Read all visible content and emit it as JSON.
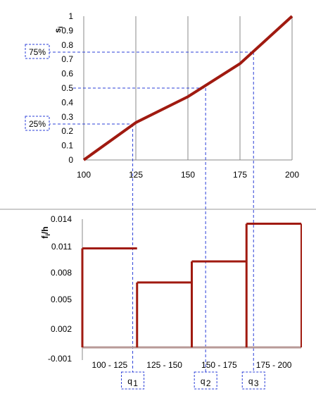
{
  "chart_data": [
    {
      "type": "line",
      "xlabel": "",
      "ylabel": "s",
      "ylabel_sub": "i",
      "xlim": [
        100,
        200
      ],
      "ylim": [
        0,
        1
      ],
      "x_ticks": [
        "100",
        "125",
        "150",
        "175",
        "200"
      ],
      "y_ticks": [
        "0",
        "0.1",
        "0.2",
        "0.3",
        "0.4",
        "0.5",
        "0.6",
        "0.7",
        "0.8",
        "0.9",
        "1"
      ],
      "grid": "vertical",
      "series": [
        {
          "x": [
            100,
            125,
            150,
            175,
            200
          ],
          "y": [
            0,
            0.26,
            0.44,
            0.67,
            1.0
          ]
        }
      ],
      "annotations": [
        {
          "label": "25%",
          "y": 0.25
        },
        {
          "label": "75%",
          "y": 0.75
        }
      ],
      "guides": [
        {
          "x": 123.5,
          "y": 0.25
        },
        {
          "x": 158.5,
          "y": 0.5
        },
        {
          "x": 181.5,
          "y": 0.75
        }
      ],
      "color": "#a01a10"
    },
    {
      "type": "bar",
      "ylabel": "f",
      "ylabel_sub": "i",
      "ylabel_suffix": "/h",
      "categories": [
        "100 - 125",
        "125 - 150",
        "150 - 175",
        "175 - 200"
      ],
      "values": [
        0.0108,
        0.0069,
        0.0093,
        0.0135
      ],
      "ylim": [
        -0.001,
        0.014
      ],
      "y_ticks": [
        "0.014",
        "0.011",
        "0.008",
        "0.005",
        "0.002",
        "-0.001"
      ],
      "y_tick_values": [
        0.014,
        0.011,
        0.008,
        0.005,
        0.002,
        -0.001
      ],
      "quartile_labels": [
        {
          "label": "q",
          "sub": "1"
        },
        {
          "label": "q",
          "sub": "2"
        },
        {
          "label": "q",
          "sub": "3"
        }
      ],
      "color": "#a01a10"
    }
  ]
}
